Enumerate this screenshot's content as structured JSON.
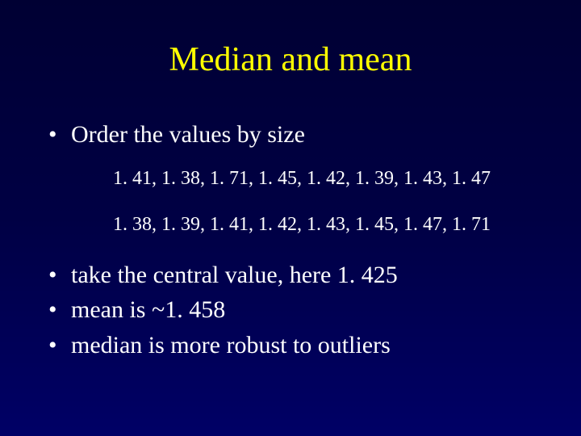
{
  "slide": {
    "title": "Median and mean",
    "bullet1": "Order the values by size",
    "data_unsorted": "1. 41, 1. 38, 1. 71, 1. 45, 1. 42, 1. 39, 1. 43, 1. 47",
    "data_sorted": "1. 38, 1. 39, 1. 41, 1. 42, 1. 43, 1. 45, 1. 47, 1. 71",
    "bullet2": "take the central value, here 1. 425",
    "bullet3": "mean is ~1. 458",
    "bullet4": "median is more robust to outliers"
  },
  "colors": {
    "background_top": "#000033",
    "background_bottom": "#000066",
    "title_color": "#ffff00",
    "text_color": "#ffffff"
  },
  "typography": {
    "font_family": "Times New Roman",
    "title_fontsize": 42,
    "bullet_fontsize": 30,
    "data_fontsize": 24
  }
}
